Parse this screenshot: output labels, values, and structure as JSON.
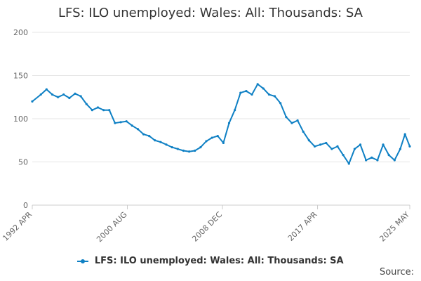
{
  "title": "LFS: ILO unemployed: Wales: All: Thousands: SA",
  "source_label": "Source:",
  "colors": {
    "series": "#0f80c4",
    "grid": "#e6e6e6",
    "axis": "#cccccc",
    "text": "#666666"
  },
  "chart_data": {
    "type": "line",
    "title": "LFS: ILO unemployed: Wales: All: Thousands: SA",
    "xlabel": "",
    "ylabel": "",
    "x_ticks": [
      "1992 APR",
      "2000 AUG",
      "2008 DEC",
      "2017 APR",
      "2025 MAY"
    ],
    "x_ticks_t": [
      0,
      100,
      200,
      300,
      397
    ],
    "y_ticks": [
      0,
      50,
      100,
      150,
      200
    ],
    "ylim": [
      0,
      200
    ],
    "grid": true,
    "legend_position": "bottom-center",
    "series": [
      {
        "name": "LFS: ILO unemployed: Wales: All: Thousands: SA",
        "points": [
          [
            "1992 APR",
            120
          ],
          [
            "1993 JAN",
            128
          ],
          [
            "1993 JUL",
            134
          ],
          [
            "1994 JAN",
            128
          ],
          [
            "1994 JUL",
            125
          ],
          [
            "1995 JAN",
            128
          ],
          [
            "1995 JUL",
            124
          ],
          [
            "1996 JAN",
            129
          ],
          [
            "1996 JUL",
            126
          ],
          [
            "1997 JAN",
            117
          ],
          [
            "1997 JUL",
            110
          ],
          [
            "1998 JAN",
            113
          ],
          [
            "1998 JUL",
            110
          ],
          [
            "1999 JAN",
            110
          ],
          [
            "1999 JUL",
            95
          ],
          [
            "2000 JAN",
            96
          ],
          [
            "2000 JUL",
            97
          ],
          [
            "2001 JAN",
            92
          ],
          [
            "2001 JUL",
            88
          ],
          [
            "2002 JAN",
            82
          ],
          [
            "2002 JUL",
            80
          ],
          [
            "2003 JAN",
            75
          ],
          [
            "2003 JUL",
            73
          ],
          [
            "2004 JAN",
            70
          ],
          [
            "2004 JUL",
            67
          ],
          [
            "2005 JAN",
            65
          ],
          [
            "2005 JUL",
            63
          ],
          [
            "2006 JAN",
            62
          ],
          [
            "2006 JUL",
            63
          ],
          [
            "2007 JAN",
            67
          ],
          [
            "2007 JUL",
            74
          ],
          [
            "2008 JAN",
            78
          ],
          [
            "2008 JUL",
            80
          ],
          [
            "2009 JAN",
            72
          ],
          [
            "2009 JUL",
            95
          ],
          [
            "2010 JAN",
            110
          ],
          [
            "2010 JUL",
            130
          ],
          [
            "2011 JAN",
            132
          ],
          [
            "2011 JUL",
            128
          ],
          [
            "2012 JAN",
            140
          ],
          [
            "2012 JUL",
            135
          ],
          [
            "2013 JAN",
            128
          ],
          [
            "2013 JUL",
            126
          ],
          [
            "2014 JAN",
            118
          ],
          [
            "2014 JUL",
            102
          ],
          [
            "2015 JAN",
            95
          ],
          [
            "2015 JUL",
            98
          ],
          [
            "2016 JAN",
            85
          ],
          [
            "2016 JUL",
            75
          ],
          [
            "2017 JAN",
            68
          ],
          [
            "2017 JUL",
            70
          ],
          [
            "2018 JAN",
            72
          ],
          [
            "2018 JUL",
            65
          ],
          [
            "2019 JAN",
            68
          ],
          [
            "2019 JUL",
            58
          ],
          [
            "2020 JAN",
            48
          ],
          [
            "2020 JUL",
            65
          ],
          [
            "2021 JAN",
            70
          ],
          [
            "2021 JUL",
            52
          ],
          [
            "2022 JAN",
            55
          ],
          [
            "2022 JUL",
            52
          ],
          [
            "2023 JAN",
            70
          ],
          [
            "2023 JUL",
            58
          ],
          [
            "2024 JAN",
            52
          ],
          [
            "2024 JUL",
            65
          ],
          [
            "2024 DEC",
            82
          ],
          [
            "2025 MAY",
            68
          ]
        ]
      }
    ]
  }
}
